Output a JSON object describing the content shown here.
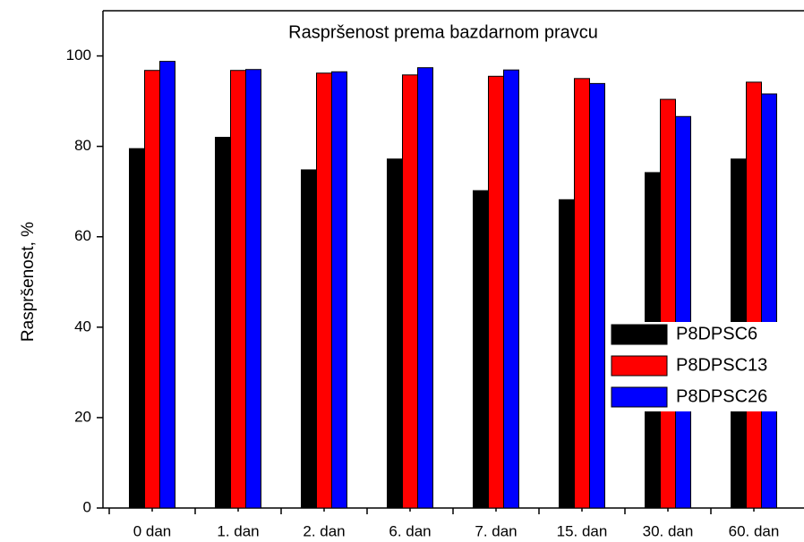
{
  "chart_data": {
    "type": "bar",
    "title": "Raspršenost prema bazdarnom pravcu",
    "y_label": "Raspršenost, %",
    "categories": [
      "0 dan",
      "1. dan",
      "2. dan",
      "6. dan",
      "7. dan",
      "15. dan",
      "30. dan",
      "60. dan"
    ],
    "series": [
      {
        "name": "P8DPSC6",
        "color": "#000000",
        "values": [
          79.5,
          82,
          74.8,
          77.2,
          70.2,
          68.2,
          74.2,
          77.2
        ]
      },
      {
        "name": "P8DPSC13",
        "color": "#ff0000",
        "values": [
          96.8,
          96.8,
          96.2,
          95.8,
          95.5,
          95,
          90.4,
          94.2
        ]
      },
      {
        "name": "P8DPSC26",
        "color": "#0000ff",
        "values": [
          98.8,
          97,
          96.5,
          97.4,
          96.9,
          93.9,
          86.6,
          91.6
        ]
      }
    ],
    "ylim": [
      0,
      110
    ],
    "yticks": [
      0,
      20,
      40,
      60,
      80,
      100
    ],
    "legend": "lower right"
  }
}
